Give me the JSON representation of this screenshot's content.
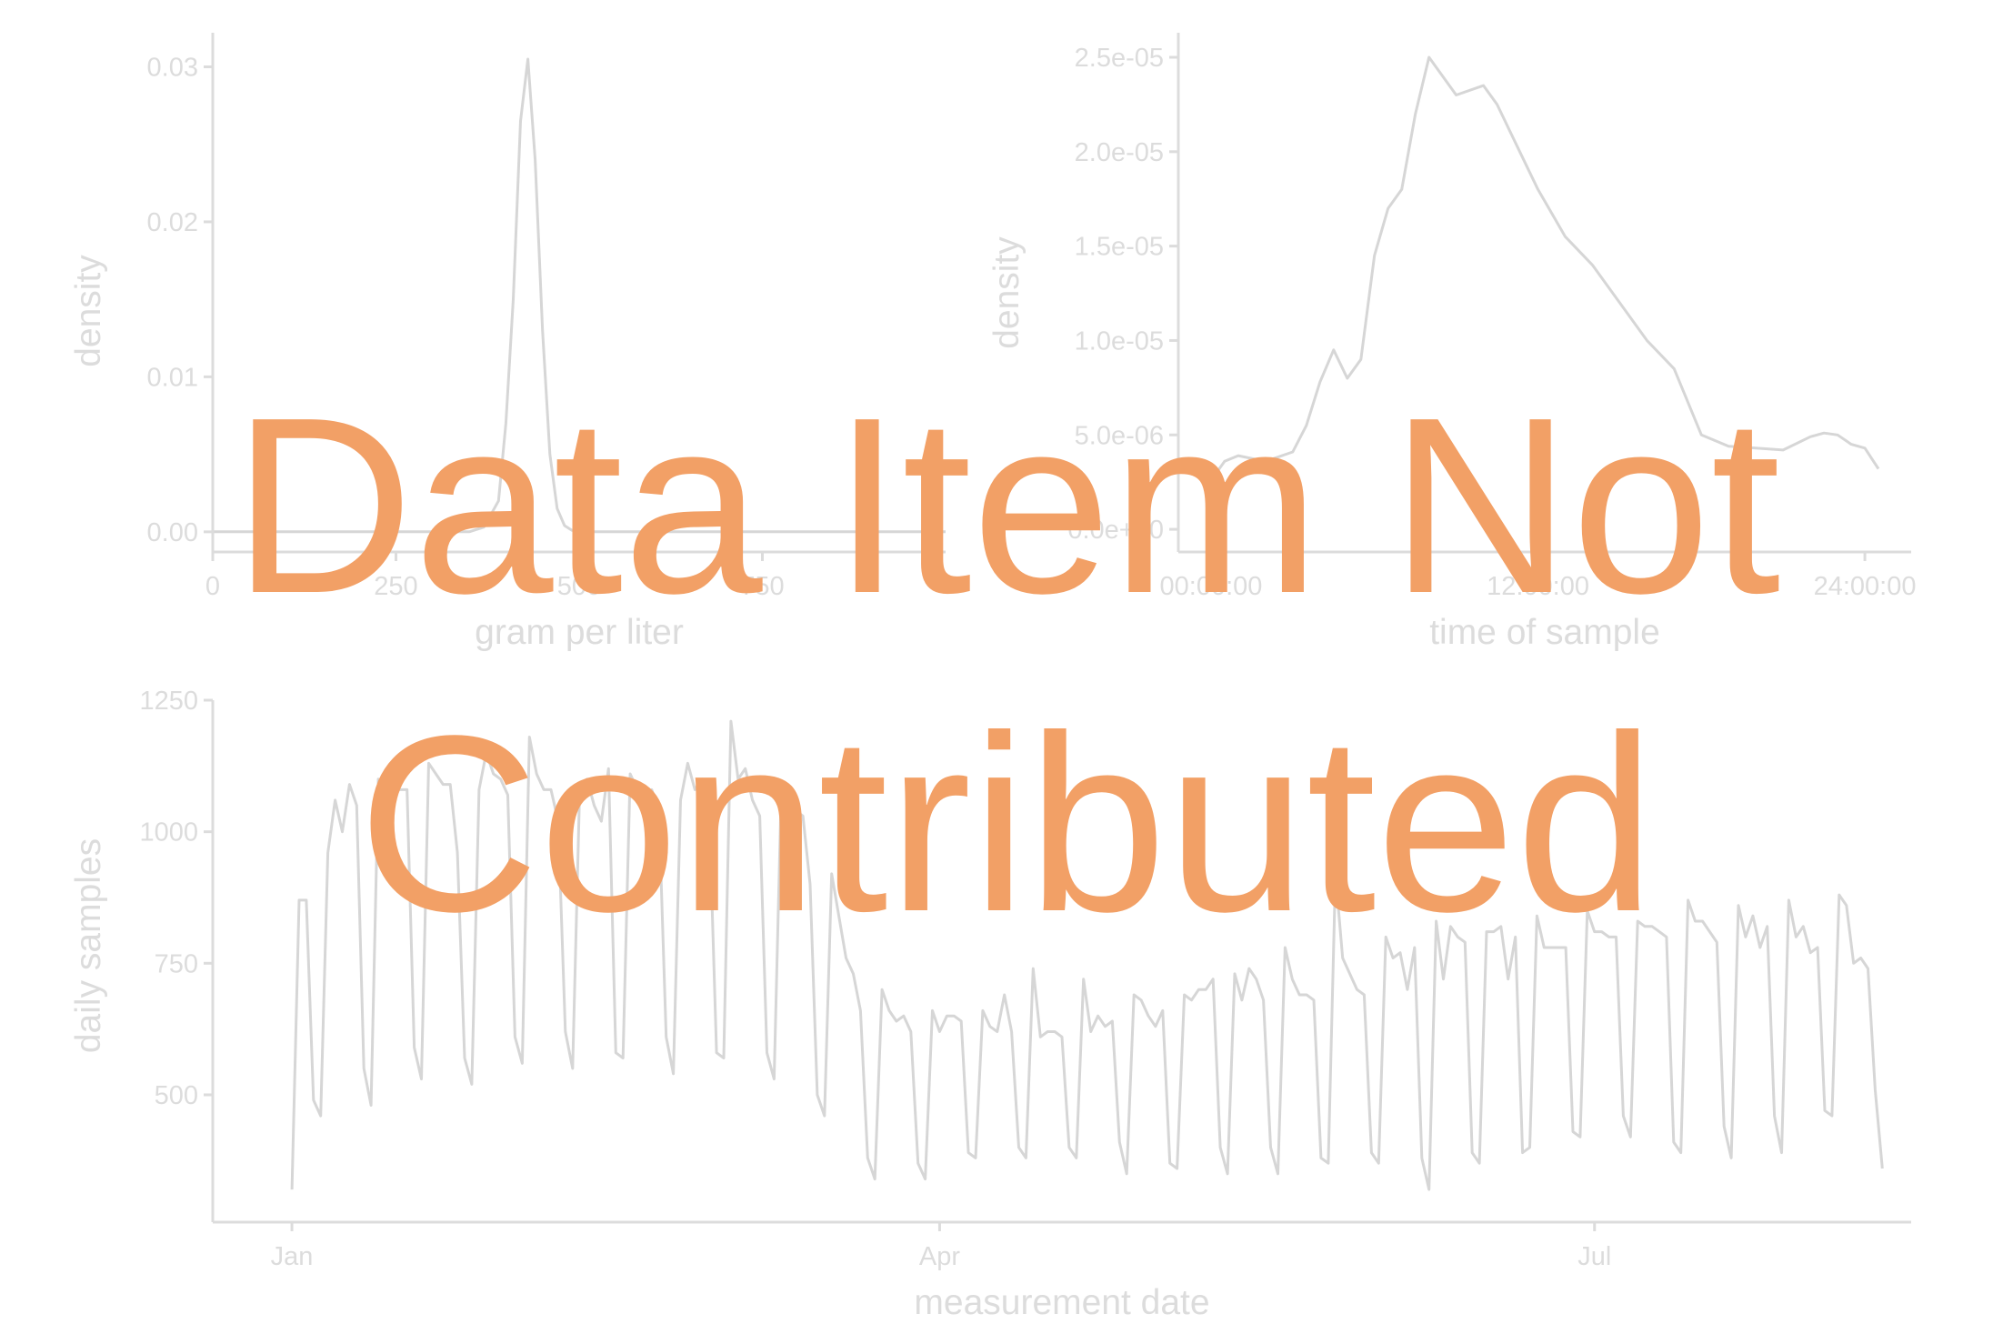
{
  "overlay": {
    "line1": "Data Item Not",
    "line2": "Contributed",
    "color": "#f2a066"
  },
  "colors": {
    "axis": "#dcdcdc",
    "line": "#d6d6d6"
  },
  "chart_data": [
    {
      "type": "line",
      "xlabel": "gram per liter",
      "ylabel": "density",
      "yticks": [
        "0.00",
        "0.01",
        "0.02",
        "0.03"
      ],
      "ytick_values": [
        0,
        0.01,
        0.02,
        0.03
      ],
      "xticks": [
        "0",
        "250",
        "500",
        "750"
      ],
      "xtick_values": [
        0,
        250,
        500,
        750
      ],
      "xlim": [
        0,
        1000
      ],
      "ylim": [
        -0.0013,
        0.0322
      ],
      "x": [
        0,
        100,
        200,
        300,
        350,
        370,
        390,
        400,
        410,
        420,
        430,
        440,
        450,
        460,
        470,
        480,
        490,
        500,
        510,
        530,
        560,
        600,
        700,
        800,
        1000
      ],
      "y": [
        0,
        0,
        0,
        0,
        0,
        0.0003,
        0.002,
        0.007,
        0.015,
        0.0265,
        0.0305,
        0.024,
        0.013,
        0.005,
        0.0015,
        0.0004,
        0.0001,
        0,
        0,
        0,
        0,
        0,
        0,
        0,
        0
      ],
      "grid": false
    },
    {
      "type": "line",
      "xlabel": "time of sample",
      "ylabel": "density",
      "yticks": [
        "0.0e+00",
        "5.0e-06",
        "1.0e-05",
        "1.5e-05",
        "2.0e-05",
        "2.5e-05"
      ],
      "ytick_values": [
        0,
        5e-06,
        1e-05,
        1.5e-05,
        2e-05,
        2.5e-05
      ],
      "xticks": [
        "00:00:00",
        "12:00:00",
        "24:00:00"
      ],
      "xtick_values": [
        0,
        12,
        24
      ],
      "xlim": [
        -1.2,
        25.7
      ],
      "ylim": [
        -1.2e-06,
        2.63e-05
      ],
      "x": [
        0,
        0.5,
        1,
        2,
        3,
        3.5,
        4,
        4.5,
        5,
        5.5,
        6,
        6.5,
        7,
        7.5,
        8,
        9,
        10,
        10.5,
        11,
        11.5,
        12,
        13,
        14,
        15,
        16,
        17,
        18,
        19,
        20,
        21,
        22,
        22.5,
        23,
        23.5,
        24,
        24.5
      ],
      "y": [
        2.6e-06,
        3.6e-06,
        3.9e-06,
        3.6e-06,
        4.1e-06,
        5.5e-06,
        7.8e-06,
        9.5e-06,
        8e-06,
        9e-06,
        1.45e-05,
        1.7e-05,
        1.8e-05,
        2.2e-05,
        2.5e-05,
        2.3e-05,
        2.35e-05,
        2.25e-05,
        2.1e-05,
        1.95e-05,
        1.8e-05,
        1.55e-05,
        1.4e-05,
        1.2e-05,
        1e-05,
        8.5e-06,
        5e-06,
        4.4e-06,
        4.3e-06,
        4.2e-06,
        4.9e-06,
        5.1e-06,
        5e-06,
        4.5e-06,
        4.3e-06,
        3.2e-06
      ],
      "grid": false
    },
    {
      "type": "line",
      "xlabel": "measurement date",
      "ylabel": "daily samples",
      "yticks": [
        "500",
        "750",
        "1000",
        "1250"
      ],
      "ytick_values": [
        500,
        750,
        1000,
        1250
      ],
      "xticks": [
        "Jan",
        "Apr",
        "Jul"
      ],
      "xtick_values": [
        "2021-01-01",
        "2021-04-01",
        "2021-07-01"
      ],
      "xlim": [
        "2020-12-21",
        "2021-08-14"
      ],
      "ylim": [
        258,
        1250
      ],
      "x_start": "2021-01-01",
      "x_step_days": 1,
      "values": [
        320,
        870,
        870,
        490,
        460,
        960,
        1060,
        1000,
        1090,
        1050,
        550,
        480,
        1100,
        1030,
        1090,
        1080,
        1080,
        590,
        530,
        1130,
        1110,
        1090,
        1090,
        960,
        570,
        520,
        1080,
        1150,
        1110,
        1100,
        1070,
        610,
        560,
        1180,
        1110,
        1080,
        1080,
        1020,
        620,
        550,
        1090,
        1100,
        1050,
        1020,
        1120,
        580,
        570,
        1110,
        1080,
        1060,
        1080,
        1040,
        610,
        540,
        1060,
        1130,
        1080,
        1100,
        1030,
        580,
        570,
        1210,
        1100,
        1120,
        1060,
        1030,
        580,
        530,
        1080,
        1050,
        1040,
        1030,
        900,
        500,
        460,
        920,
        840,
        760,
        730,
        660,
        380,
        340,
        700,
        660,
        640,
        650,
        620,
        370,
        340,
        660,
        620,
        650,
        650,
        640,
        390,
        380,
        660,
        630,
        620,
        690,
        620,
        400,
        380,
        740,
        610,
        620,
        620,
        610,
        400,
        380,
        720,
        620,
        650,
        630,
        640,
        410,
        350,
        690,
        680,
        650,
        630,
        660,
        370,
        360,
        690,
        680,
        700,
        700,
        720,
        400,
        350,
        730,
        680,
        740,
        720,
        680,
        400,
        350,
        780,
        720,
        690,
        690,
        680,
        380,
        370,
        920,
        760,
        730,
        700,
        690,
        390,
        370,
        800,
        760,
        770,
        700,
        780,
        380,
        320,
        830,
        720,
        820,
        800,
        790,
        390,
        370,
        810,
        810,
        820,
        720,
        800,
        390,
        400,
        840,
        780,
        780,
        780,
        780,
        430,
        420,
        850,
        810,
        810,
        800,
        800,
        460,
        420,
        830,
        820,
        820,
        810,
        800,
        410,
        390,
        870,
        830,
        830,
        810,
        790,
        440,
        380,
        860,
        800,
        840,
        780,
        820,
        460,
        390,
        870,
        800,
        820,
        770,
        780,
        470,
        460,
        880,
        860,
        750,
        760,
        740,
        510,
        360
      ],
      "grid": false
    }
  ]
}
